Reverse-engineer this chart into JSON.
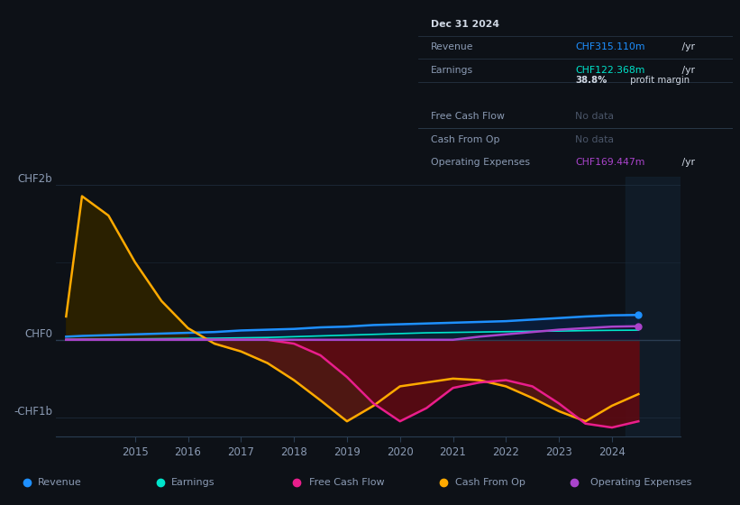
{
  "bg_color": "#0d1117",
  "plot_bg_color": "#0d1117",
  "grid_color": "#1e2d3d",
  "text_color": "#8b9bb4",
  "title_color": "#ffffff",
  "years": [
    2013.7,
    2014.0,
    2014.5,
    2015.0,
    2015.5,
    2016.0,
    2016.5,
    2017.0,
    2017.5,
    2018.0,
    2018.5,
    2019.0,
    2019.5,
    2020.0,
    2020.5,
    2021.0,
    2021.5,
    2022.0,
    2022.5,
    2023.0,
    2023.5,
    2024.0,
    2024.5
  ],
  "revenue": [
    0.04,
    0.05,
    0.06,
    0.07,
    0.08,
    0.09,
    0.1,
    0.12,
    0.13,
    0.14,
    0.16,
    0.17,
    0.19,
    0.2,
    0.21,
    0.22,
    0.23,
    0.24,
    0.26,
    0.28,
    0.3,
    0.315,
    0.32
  ],
  "earnings": [
    0.005,
    0.008,
    0.01,
    0.012,
    0.015,
    0.018,
    0.02,
    0.025,
    0.03,
    0.04,
    0.05,
    0.06,
    0.07,
    0.08,
    0.09,
    0.095,
    0.1,
    0.105,
    0.11,
    0.112,
    0.118,
    0.122,
    0.124
  ],
  "cash_from_op": [
    0.3,
    1.85,
    1.6,
    1.0,
    0.5,
    0.15,
    -0.05,
    -0.15,
    -0.3,
    -0.52,
    -0.78,
    -1.05,
    -0.85,
    -0.6,
    -0.55,
    -0.5,
    -0.52,
    -0.6,
    -0.75,
    -0.92,
    -1.05,
    -0.85,
    -0.7
  ],
  "free_cash_flow": [
    0.0,
    0.0,
    0.0,
    0.0,
    0.0,
    0.0,
    0.0,
    0.0,
    0.0,
    -0.05,
    -0.2,
    -0.48,
    -0.82,
    -1.05,
    -0.88,
    -0.62,
    -0.55,
    -0.52,
    -0.6,
    -0.82,
    -1.08,
    -1.13,
    -1.05
  ],
  "operating_expenses": [
    0.0,
    0.0,
    0.0,
    0.0,
    0.0,
    0.0,
    0.0,
    0.0,
    0.0,
    0.0,
    0.0,
    0.0,
    0.0,
    0.0,
    0.0,
    0.0,
    0.04,
    0.07,
    0.1,
    0.13,
    0.15,
    0.169,
    0.175
  ],
  "revenue_color": "#1e90ff",
  "earnings_color": "#00e5cc",
  "free_cash_flow_color": "#e91e8c",
  "cash_from_op_color": "#ffaa00",
  "operating_expenses_color": "#aa44cc",
  "ylim": [
    -1.25,
    2.1
  ],
  "xtick_years": [
    2015,
    2016,
    2017,
    2018,
    2019,
    2020,
    2021,
    2022,
    2023,
    2024
  ],
  "info_box": {
    "date": "Dec 31 2024",
    "revenue_label": "Revenue",
    "revenue_value": "CHF315.110m",
    "revenue_color": "#1e90ff",
    "earnings_label": "Earnings",
    "earnings_value": "CHF122.368m",
    "earnings_color": "#00e5cc",
    "profit_margin_bold": "38.8%",
    "profit_margin_rest": " profit margin",
    "fcf_label": "Free Cash Flow",
    "fcf_value": "No data",
    "cashop_label": "Cash From Op",
    "cashop_value": "No data",
    "opex_label": "Operating Expenses",
    "opex_value": "CHF169.447m",
    "opex_color": "#aa44cc",
    "per_yr": " /yr",
    "bg_color": "#0a0e14",
    "border_color": "#2a3a4a",
    "text_color": "#8b9bb4",
    "nodata_color": "#4a5568",
    "white": "#d0d8e4"
  },
  "legend_items": [
    {
      "label": "Revenue",
      "color": "#1e90ff"
    },
    {
      "label": "Earnings",
      "color": "#00e5cc"
    },
    {
      "label": "Free Cash Flow",
      "color": "#e91e8c"
    },
    {
      "label": "Cash From Op",
      "color": "#ffaa00"
    },
    {
      "label": "Operating Expenses",
      "color": "#aa44cc"
    }
  ]
}
